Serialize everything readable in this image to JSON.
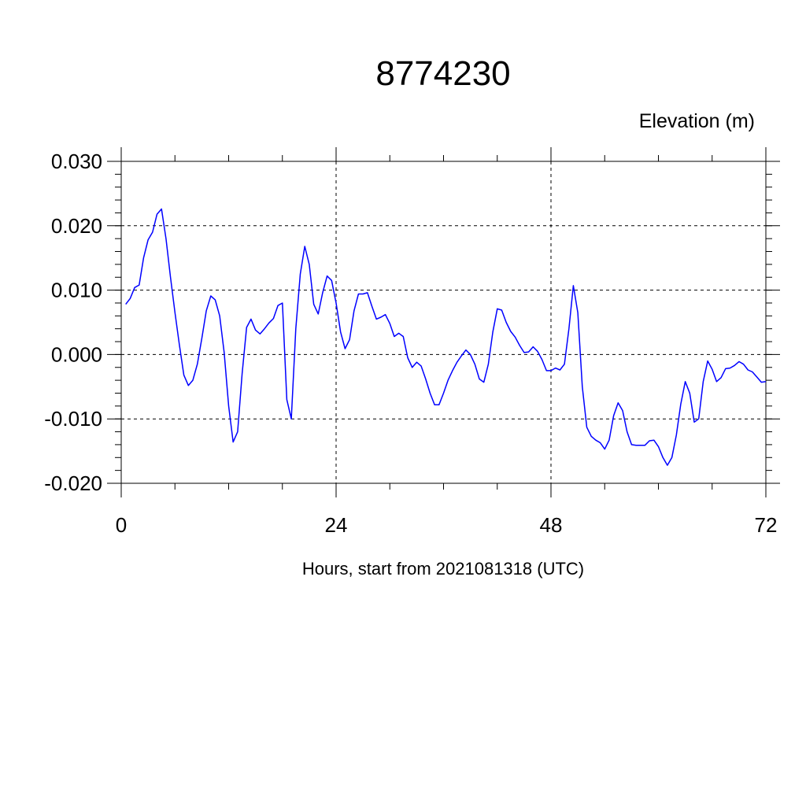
{
  "chart_data": {
    "type": "line",
    "title": "8774230",
    "subtitle": "Elevation (m)",
    "xlabel": "Hours, start from 2021081318 (UTC)",
    "xlim": [
      0,
      72
    ],
    "ylim": [
      -0.02,
      0.03
    ],
    "x_ticks": [
      {
        "value": 0,
        "label": "0"
      },
      {
        "value": 24,
        "label": "24"
      },
      {
        "value": 48,
        "label": "48"
      },
      {
        "value": 72,
        "label": "72"
      }
    ],
    "y_ticks": [
      {
        "value": 0.03,
        "label": "0.030"
      },
      {
        "value": 0.02,
        "label": "0.020"
      },
      {
        "value": 0.01,
        "label": "0.010"
      },
      {
        "value": 0.0,
        "label": "0.000"
      },
      {
        "value": -0.01,
        "label": "-0.010"
      },
      {
        "value": -0.02,
        "label": "-0.020"
      }
    ],
    "grid": true,
    "line_color": "#0000ff",
    "series": [
      {
        "x": [
          0.5,
          1.0,
          1.5,
          2.0,
          2.5,
          3.0,
          3.5,
          4.0,
          4.5,
          5.0,
          5.5,
          6.0,
          6.5,
          7.0,
          7.5,
          8.0,
          8.5,
          9.0,
          9.5,
          10.0,
          10.5,
          11.0,
          11.5,
          12.0,
          12.5,
          13.0,
          13.5,
          14.0,
          14.5,
          15.0,
          15.5,
          16.0,
          16.5,
          17.0,
          17.5,
          18.0,
          18.5,
          19.0,
          19.5,
          20.0,
          20.5,
          21.0,
          21.5,
          22.0,
          22.5,
          23.0,
          23.5,
          24.0,
          24.5,
          25.0,
          25.5,
          26.0,
          26.5,
          27.0,
          27.5,
          28.0,
          28.5,
          29.0,
          29.5,
          30.0,
          30.5,
          31.0,
          31.5,
          32.0,
          32.5,
          33.0,
          33.5,
          34.0,
          34.5,
          35.0,
          35.5,
          36.0,
          36.5,
          37.0,
          37.5,
          38.0,
          38.5,
          39.0,
          39.5,
          40.0,
          40.5,
          41.0,
          41.5,
          42.0,
          42.5,
          43.0,
          43.5,
          44.0,
          44.5,
          45.0,
          45.5,
          46.0,
          46.5,
          47.0,
          47.5,
          48.0,
          48.5,
          49.0,
          49.5,
          50.0,
          50.5,
          51.0,
          51.5,
          52.0,
          52.5,
          53.0,
          53.5,
          54.0,
          54.5,
          55.0,
          55.5,
          56.0,
          56.5,
          57.0,
          57.5,
          58.0,
          58.5,
          59.0,
          59.5,
          60.0,
          60.5,
          61.0,
          61.5,
          62.0,
          62.5,
          63.0,
          63.5,
          64.0,
          64.5,
          65.0,
          65.5,
          66.0,
          66.5,
          67.0,
          67.5,
          68.0,
          68.5,
          69.0,
          69.5,
          70.0,
          70.5,
          71.0,
          71.5,
          72.0
        ],
        "y": [
          0.0078,
          0.0087,
          0.0104,
          0.0108,
          0.015,
          0.0178,
          0.019,
          0.0218,
          0.0226,
          0.018,
          0.012,
          0.0065,
          0.0015,
          -0.0032,
          -0.0048,
          -0.004,
          -0.0015,
          0.0025,
          0.0068,
          0.0091,
          0.0085,
          0.006,
          0.0003,
          -0.008,
          -0.0136,
          -0.012,
          -0.003,
          0.0042,
          0.0055,
          0.0038,
          0.0032,
          0.004,
          0.0049,
          0.0056,
          0.0076,
          0.008,
          -0.007,
          -0.01,
          0.004,
          0.0125,
          0.0168,
          0.014,
          0.0078,
          0.0063,
          0.0096,
          0.0122,
          0.0115,
          0.008,
          0.0035,
          0.0009,
          0.0023,
          0.0068,
          0.0094,
          0.0094,
          0.0096,
          0.0075,
          0.0055,
          0.0058,
          0.0062,
          0.0048,
          0.0028,
          0.0033,
          0.0028,
          -0.0005,
          -0.002,
          -0.0012,
          -0.0018,
          -0.0038,
          -0.006,
          -0.0078,
          -0.0078,
          -0.006,
          -0.004,
          -0.0025,
          -0.0012,
          -0.0002,
          0.0007,
          0.0,
          -0.0015,
          -0.0038,
          -0.0043,
          -0.0015,
          0.0035,
          0.0071,
          0.0069,
          0.005,
          0.0036,
          0.0027,
          0.0014,
          0.0003,
          0.0004,
          0.0012,
          0.0005,
          -0.0008,
          -0.0025,
          -0.0025,
          -0.0021,
          -0.0024,
          -0.0015,
          0.004,
          0.0107,
          0.0065,
          -0.005,
          -0.0113,
          -0.0127,
          -0.0133,
          -0.0137,
          -0.0147,
          -0.0133,
          -0.0095,
          -0.0075,
          -0.0087,
          -0.012,
          -0.014,
          -0.0141,
          -0.0141,
          -0.0141,
          -0.0134,
          -0.0133,
          -0.0143,
          -0.016,
          -0.0172,
          -0.016,
          -0.0125,
          -0.0077,
          -0.0042,
          -0.006,
          -0.0105,
          -0.01,
          -0.0042,
          -0.001,
          -0.0023,
          -0.0042,
          -0.0036,
          -0.0022,
          -0.0021,
          -0.0017,
          -0.0011,
          -0.0015,
          -0.0024,
          -0.0027,
          -0.0035,
          -0.0043,
          -0.0042
        ]
      }
    ]
  }
}
